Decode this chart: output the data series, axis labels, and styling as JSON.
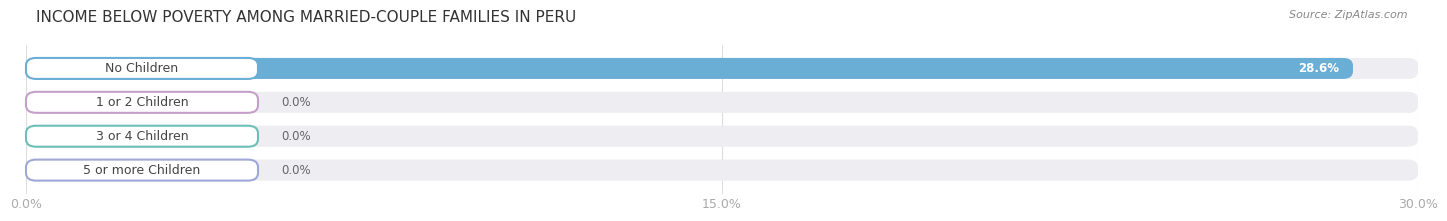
{
  "title": "INCOME BELOW POVERTY AMONG MARRIED-COUPLE FAMILIES IN PERU",
  "source": "Source: ZipAtlas.com",
  "categories": [
    "No Children",
    "1 or 2 Children",
    "3 or 4 Children",
    "5 or more Children"
  ],
  "values": [
    28.6,
    0.0,
    0.0,
    0.0
  ],
  "bar_colors": [
    "#6aaed6",
    "#c4a0c8",
    "#6bbfb8",
    "#a0a8d8"
  ],
  "xlim": [
    0,
    30.0
  ],
  "xticks": [
    0.0,
    15.0,
    30.0
  ],
  "xtick_labels": [
    "0.0%",
    "15.0%",
    "30.0%"
  ],
  "background_color": "#ffffff",
  "bar_background_color": "#ededf2",
  "title_fontsize": 11,
  "tick_fontsize": 9,
  "label_fontsize": 9,
  "value_fontsize": 8.5
}
